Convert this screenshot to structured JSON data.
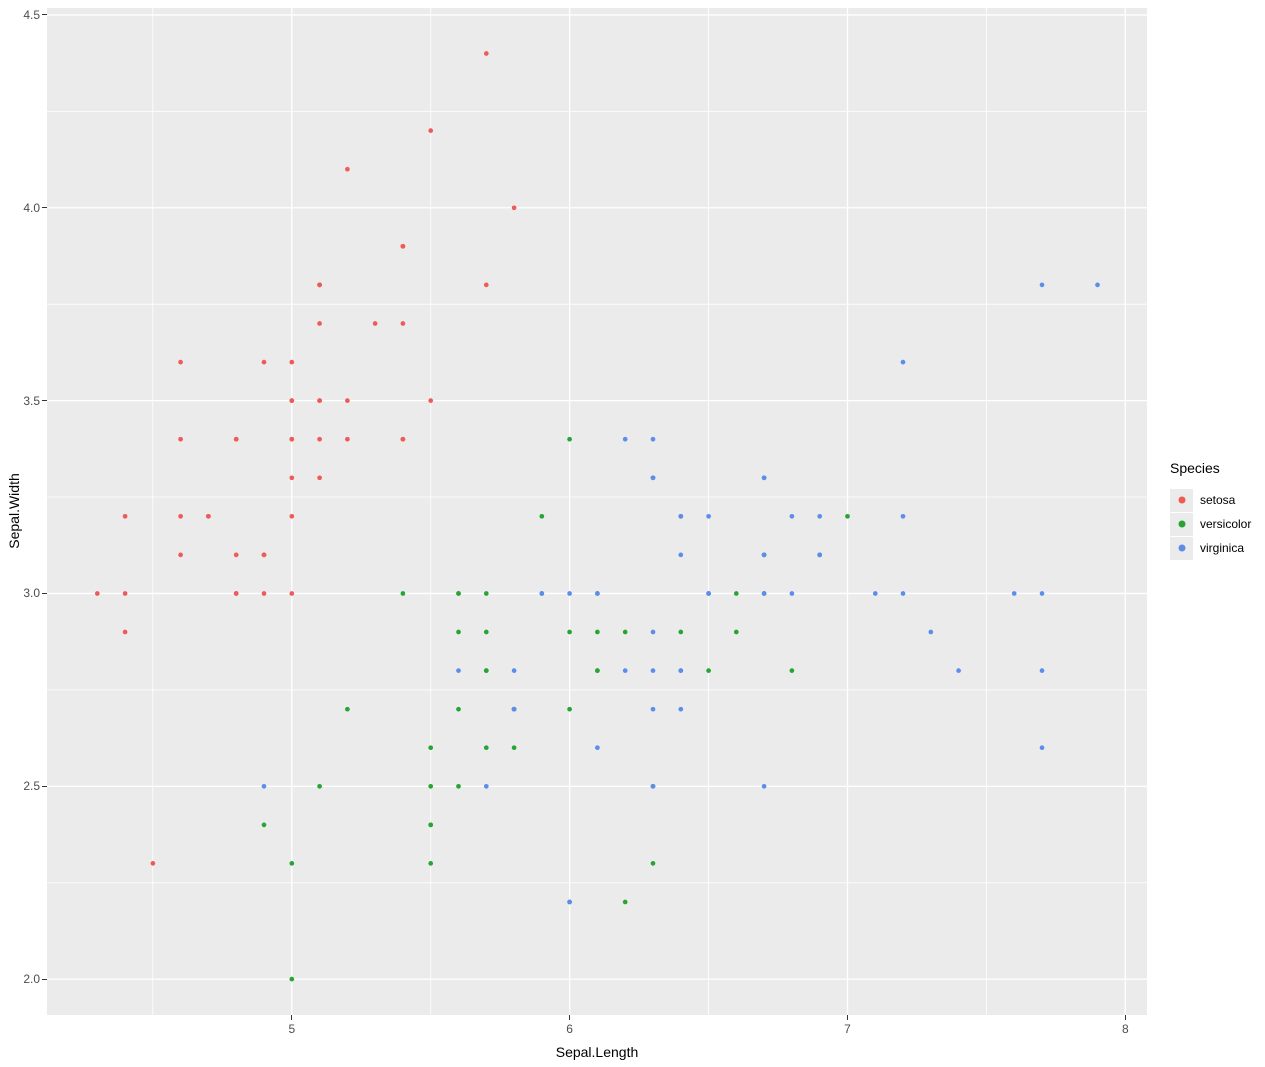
{
  "legend": {
    "title": "Species",
    "position": "right"
  },
  "chart_data": {
    "type": "scatter",
    "title": "",
    "xlabel": "Sepal.Length",
    "ylabel": "Sepal.Width",
    "xlim": [
      4.119,
      8.078
    ],
    "ylim": [
      1.907,
      4.518
    ],
    "x_ticks": [
      5,
      6,
      7,
      8
    ],
    "x_tick_labels": [
      "5",
      "6",
      "7",
      "8"
    ],
    "x_minor_ticks": [
      4.5,
      5.5,
      6.5,
      7.5
    ],
    "y_ticks": [
      2.0,
      2.5,
      3.0,
      3.5,
      4.0,
      4.5
    ],
    "y_tick_labels": [
      "2.0",
      "2.5",
      "3.0",
      "3.5",
      "4.0",
      "4.5"
    ],
    "y_minor_ticks": [
      2.25,
      2.75,
      3.25,
      3.75,
      4.25
    ],
    "grid": {
      "major": true,
      "minor": true
    },
    "panel_bg": "#ebebeb",
    "grid_color": "#ffffff",
    "tick_text_color": "#4d4d4d",
    "series": [
      {
        "name": "setosa",
        "color": "#ee5a55",
        "points": [
          [
            5.1,
            3.5
          ],
          [
            4.9,
            3.0
          ],
          [
            4.7,
            3.2
          ],
          [
            4.6,
            3.1
          ],
          [
            5.0,
            3.6
          ],
          [
            5.4,
            3.9
          ],
          [
            4.6,
            3.4
          ],
          [
            5.0,
            3.4
          ],
          [
            4.4,
            2.9
          ],
          [
            4.9,
            3.1
          ],
          [
            5.4,
            3.7
          ],
          [
            4.8,
            3.4
          ],
          [
            4.8,
            3.0
          ],
          [
            4.3,
            3.0
          ],
          [
            5.8,
            4.0
          ],
          [
            5.7,
            4.4
          ],
          [
            5.4,
            3.9
          ],
          [
            5.1,
            3.5
          ],
          [
            5.7,
            3.8
          ],
          [
            5.1,
            3.8
          ],
          [
            5.4,
            3.4
          ],
          [
            5.1,
            3.7
          ],
          [
            4.6,
            3.6
          ],
          [
            5.1,
            3.3
          ],
          [
            4.8,
            3.4
          ],
          [
            5.0,
            3.0
          ],
          [
            5.0,
            3.4
          ],
          [
            5.2,
            3.5
          ],
          [
            5.2,
            3.4
          ],
          [
            4.7,
            3.2
          ],
          [
            4.8,
            3.1
          ],
          [
            5.4,
            3.4
          ],
          [
            5.2,
            4.1
          ],
          [
            5.5,
            4.2
          ],
          [
            4.9,
            3.1
          ],
          [
            5.0,
            3.2
          ],
          [
            5.5,
            3.5
          ],
          [
            4.9,
            3.6
          ],
          [
            4.4,
            3.0
          ],
          [
            5.1,
            3.4
          ],
          [
            5.0,
            3.5
          ],
          [
            4.5,
            2.3
          ],
          [
            4.4,
            3.2
          ],
          [
            5.0,
            3.5
          ],
          [
            5.1,
            3.8
          ],
          [
            4.8,
            3.0
          ],
          [
            5.1,
            3.8
          ],
          [
            4.6,
            3.2
          ],
          [
            5.3,
            3.7
          ],
          [
            5.0,
            3.3
          ]
        ]
      },
      {
        "name": "versicolor",
        "color": "#28a433",
        "points": [
          [
            7.0,
            3.2
          ],
          [
            6.4,
            3.2
          ],
          [
            6.9,
            3.1
          ],
          [
            5.5,
            2.3
          ],
          [
            6.5,
            2.8
          ],
          [
            5.7,
            2.8
          ],
          [
            6.3,
            3.3
          ],
          [
            4.9,
            2.4
          ],
          [
            6.6,
            2.9
          ],
          [
            5.2,
            2.7
          ],
          [
            5.0,
            2.0
          ],
          [
            5.9,
            3.0
          ],
          [
            6.0,
            2.2
          ],
          [
            6.1,
            2.9
          ],
          [
            5.6,
            2.9
          ],
          [
            6.7,
            3.1
          ],
          [
            5.6,
            3.0
          ],
          [
            5.8,
            2.7
          ],
          [
            6.2,
            2.2
          ],
          [
            5.6,
            2.5
          ],
          [
            5.9,
            3.2
          ],
          [
            6.1,
            2.8
          ],
          [
            6.3,
            2.5
          ],
          [
            6.1,
            2.8
          ],
          [
            6.4,
            2.9
          ],
          [
            6.6,
            3.0
          ],
          [
            6.8,
            2.8
          ],
          [
            6.7,
            3.0
          ],
          [
            6.0,
            2.9
          ],
          [
            5.7,
            2.6
          ],
          [
            5.5,
            2.4
          ],
          [
            5.5,
            2.4
          ],
          [
            5.8,
            2.7
          ],
          [
            6.0,
            2.7
          ],
          [
            5.4,
            3.0
          ],
          [
            6.0,
            3.4
          ],
          [
            6.7,
            3.1
          ],
          [
            6.3,
            2.3
          ],
          [
            5.6,
            3.0
          ],
          [
            5.5,
            2.5
          ],
          [
            5.5,
            2.6
          ],
          [
            6.1,
            3.0
          ],
          [
            5.8,
            2.6
          ],
          [
            5.0,
            2.3
          ],
          [
            5.6,
            2.7
          ],
          [
            5.7,
            3.0
          ],
          [
            5.7,
            2.9
          ],
          [
            6.2,
            2.9
          ],
          [
            5.1,
            2.5
          ],
          [
            5.7,
            2.8
          ]
        ]
      },
      {
        "name": "virginica",
        "color": "#5c8deb",
        "points": [
          [
            6.3,
            3.3
          ],
          [
            5.8,
            2.7
          ],
          [
            7.1,
            3.0
          ],
          [
            6.3,
            2.9
          ],
          [
            6.5,
            3.0
          ],
          [
            7.6,
            3.0
          ],
          [
            4.9,
            2.5
          ],
          [
            7.3,
            2.9
          ],
          [
            6.7,
            2.5
          ],
          [
            7.2,
            3.6
          ],
          [
            6.5,
            3.2
          ],
          [
            6.4,
            2.7
          ],
          [
            6.8,
            3.0
          ],
          [
            5.7,
            2.5
          ],
          [
            5.8,
            2.8
          ],
          [
            6.4,
            3.2
          ],
          [
            6.5,
            3.0
          ],
          [
            7.7,
            3.8
          ],
          [
            7.7,
            2.6
          ],
          [
            6.0,
            2.2
          ],
          [
            6.9,
            3.2
          ],
          [
            5.6,
            2.8
          ],
          [
            7.7,
            2.8
          ],
          [
            6.3,
            2.7
          ],
          [
            6.7,
            3.3
          ],
          [
            7.2,
            3.2
          ],
          [
            6.2,
            2.8
          ],
          [
            6.1,
            3.0
          ],
          [
            6.4,
            2.8
          ],
          [
            7.2,
            3.0
          ],
          [
            7.4,
            2.8
          ],
          [
            7.9,
            3.8
          ],
          [
            6.4,
            2.8
          ],
          [
            6.3,
            2.8
          ],
          [
            6.1,
            2.6
          ],
          [
            7.7,
            3.0
          ],
          [
            6.3,
            3.4
          ],
          [
            6.4,
            3.1
          ],
          [
            6.0,
            3.0
          ],
          [
            6.9,
            3.1
          ],
          [
            6.7,
            3.1
          ],
          [
            6.9,
            3.1
          ],
          [
            5.8,
            2.7
          ],
          [
            6.8,
            3.2
          ],
          [
            6.7,
            3.3
          ],
          [
            6.7,
            3.0
          ],
          [
            6.3,
            2.5
          ],
          [
            6.5,
            3.0
          ],
          [
            6.2,
            3.4
          ],
          [
            5.9,
            3.0
          ]
        ]
      }
    ]
  }
}
